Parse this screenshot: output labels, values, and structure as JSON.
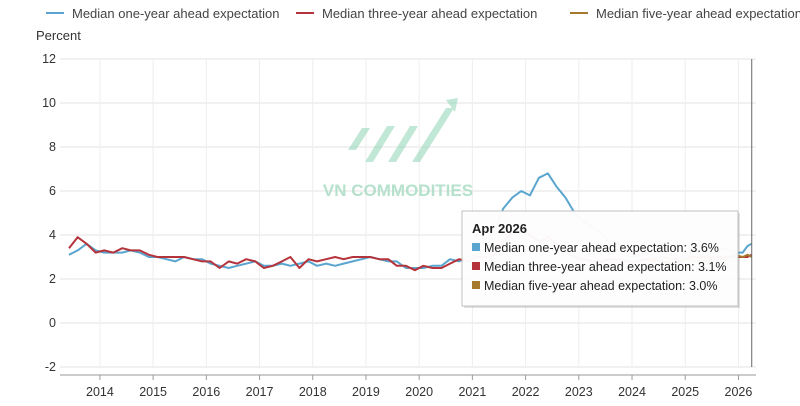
{
  "chart_data": {
    "type": "line",
    "ylabel": "Percent",
    "ylim": [
      -2,
      12
    ],
    "y_ticks": [
      -2,
      0,
      2,
      4,
      6,
      8,
      10,
      12
    ],
    "x_ticks": [
      2014,
      2015,
      2016,
      2017,
      2018,
      2019,
      2020,
      2021,
      2022,
      2023,
      2024,
      2025,
      2026
    ],
    "x_range": [
      2013.25,
      2026.33
    ],
    "grid": true,
    "legend_position": "top",
    "series": [
      {
        "name": "Median one-year ahead expectation",
        "color": "#5aa5cf",
        "points": [
          [
            2013.42,
            3.1
          ],
          [
            2013.58,
            3.3
          ],
          [
            2013.75,
            3.6
          ],
          [
            2013.92,
            3.3
          ],
          [
            2014.08,
            3.2
          ],
          [
            2014.25,
            3.2
          ],
          [
            2014.42,
            3.2
          ],
          [
            2014.58,
            3.3
          ],
          [
            2014.75,
            3.2
          ],
          [
            2014.92,
            3.0
          ],
          [
            2015.08,
            3.0
          ],
          [
            2015.25,
            2.9
          ],
          [
            2015.42,
            2.8
          ],
          [
            2015.58,
            3.0
          ],
          [
            2015.75,
            2.9
          ],
          [
            2015.92,
            2.9
          ],
          [
            2016.08,
            2.7
          ],
          [
            2016.25,
            2.6
          ],
          [
            2016.42,
            2.5
          ],
          [
            2016.58,
            2.6
          ],
          [
            2016.75,
            2.7
          ],
          [
            2016.92,
            2.8
          ],
          [
            2017.08,
            2.6
          ],
          [
            2017.25,
            2.6
          ],
          [
            2017.42,
            2.7
          ],
          [
            2017.58,
            2.6
          ],
          [
            2017.75,
            2.7
          ],
          [
            2017.92,
            2.8
          ],
          [
            2018.08,
            2.6
          ],
          [
            2018.25,
            2.7
          ],
          [
            2018.42,
            2.6
          ],
          [
            2018.58,
            2.7
          ],
          [
            2018.75,
            2.8
          ],
          [
            2018.92,
            2.9
          ],
          [
            2019.08,
            3.0
          ],
          [
            2019.25,
            2.9
          ],
          [
            2019.42,
            2.8
          ],
          [
            2019.58,
            2.8
          ],
          [
            2019.75,
            2.5
          ],
          [
            2019.92,
            2.5
          ],
          [
            2020.08,
            2.5
          ],
          [
            2020.25,
            2.6
          ],
          [
            2020.42,
            2.6
          ],
          [
            2020.58,
            2.9
          ],
          [
            2020.75,
            2.8
          ],
          [
            2020.92,
            3.0
          ],
          [
            2021.08,
            3.1
          ],
          [
            2021.25,
            3.4
          ],
          [
            2021.42,
            4.2
          ],
          [
            2021.58,
            5.2
          ],
          [
            2021.75,
            5.7
          ],
          [
            2021.92,
            6.0
          ],
          [
            2022.08,
            5.8
          ],
          [
            2022.25,
            6.6
          ],
          [
            2022.42,
            6.8
          ],
          [
            2022.58,
            6.2
          ],
          [
            2022.75,
            5.7
          ],
          [
            2022.92,
            5.0
          ],
          [
            2023.08,
            4.6
          ],
          [
            2023.25,
            4.4
          ],
          [
            2023.42,
            4.1
          ],
          [
            2023.58,
            3.6
          ],
          [
            2023.75,
            3.6
          ],
          [
            2023.92,
            3.0
          ],
          [
            2024.08,
            3.0
          ],
          [
            2024.25,
            3.2
          ],
          [
            2024.42,
            3.0
          ],
          [
            2024.58,
            3.0
          ],
          [
            2024.75,
            2.9
          ],
          [
            2024.92,
            3.0
          ],
          [
            2025.08,
            3.1
          ],
          [
            2025.25,
            3.6
          ],
          [
            2025.42,
            3.2
          ],
          [
            2025.58,
            3.2
          ],
          [
            2025.75,
            3.4
          ],
          [
            2025.92,
            3.2
          ],
          [
            2026.08,
            3.2
          ],
          [
            2026.17,
            3.5
          ],
          [
            2026.25,
            3.6
          ]
        ]
      },
      {
        "name": "Median three-year ahead expectation",
        "color": "#b5343c",
        "points": [
          [
            2013.42,
            3.4
          ],
          [
            2013.58,
            3.9
          ],
          [
            2013.75,
            3.6
          ],
          [
            2013.92,
            3.2
          ],
          [
            2014.08,
            3.3
          ],
          [
            2014.25,
            3.2
          ],
          [
            2014.42,
            3.4
          ],
          [
            2014.58,
            3.3
          ],
          [
            2014.75,
            3.3
          ],
          [
            2014.92,
            3.1
          ],
          [
            2015.08,
            3.0
          ],
          [
            2015.25,
            3.0
          ],
          [
            2015.42,
            3.0
          ],
          [
            2015.58,
            3.0
          ],
          [
            2015.75,
            2.9
          ],
          [
            2015.92,
            2.8
          ],
          [
            2016.08,
            2.8
          ],
          [
            2016.25,
            2.5
          ],
          [
            2016.42,
            2.8
          ],
          [
            2016.58,
            2.7
          ],
          [
            2016.75,
            2.9
          ],
          [
            2016.92,
            2.8
          ],
          [
            2017.08,
            2.5
          ],
          [
            2017.25,
            2.6
          ],
          [
            2017.42,
            2.8
          ],
          [
            2017.58,
            3.0
          ],
          [
            2017.75,
            2.5
          ],
          [
            2017.92,
            2.9
          ],
          [
            2018.08,
            2.8
          ],
          [
            2018.25,
            2.9
          ],
          [
            2018.42,
            3.0
          ],
          [
            2018.58,
            2.9
          ],
          [
            2018.75,
            3.0
          ],
          [
            2018.92,
            3.0
          ],
          [
            2019.08,
            3.0
          ],
          [
            2019.25,
            2.9
          ],
          [
            2019.42,
            2.9
          ],
          [
            2019.58,
            2.6
          ],
          [
            2019.75,
            2.6
          ],
          [
            2019.92,
            2.4
          ],
          [
            2020.08,
            2.6
          ],
          [
            2020.25,
            2.5
          ],
          [
            2020.42,
            2.5
          ],
          [
            2020.58,
            2.7
          ],
          [
            2020.75,
            2.9
          ],
          [
            2020.92,
            2.8
          ],
          [
            2021.08,
            3.0
          ],
          [
            2021.25,
            3.0
          ],
          [
            2021.42,
            3.1
          ],
          [
            2021.58,
            3.7
          ],
          [
            2021.75,
            4.1
          ],
          [
            2021.92,
            4.2
          ],
          [
            2022.08,
            4.0
          ],
          [
            2022.25,
            3.7
          ],
          [
            2022.42,
            3.9
          ],
          [
            2022.58,
            3.6
          ],
          [
            2022.75,
            3.2
          ],
          [
            2022.92,
            3.0
          ],
          [
            2023.08,
            2.9
          ],
          [
            2023.25,
            2.8
          ],
          [
            2023.42,
            2.8
          ],
          [
            2023.58,
            2.9
          ],
          [
            2023.75,
            2.9
          ],
          [
            2023.92,
            2.8
          ],
          [
            2024.08,
            2.8
          ],
          [
            2024.25,
            2.9
          ],
          [
            2024.42,
            2.9
          ],
          [
            2024.58,
            2.8
          ],
          [
            2024.75,
            2.7
          ],
          [
            2024.92,
            2.8
          ],
          [
            2025.08,
            3.0
          ],
          [
            2025.25,
            3.0
          ],
          [
            2025.42,
            3.0
          ],
          [
            2025.58,
            3.0
          ],
          [
            2025.75,
            3.0
          ],
          [
            2025.92,
            3.0
          ],
          [
            2026.08,
            3.0
          ],
          [
            2026.17,
            3.0
          ],
          [
            2026.25,
            3.1
          ]
        ]
      },
      {
        "name": "Median five-year ahead expectation",
        "color": "#a67a2e",
        "points": [
          [
            2024.25,
            2.9
          ],
          [
            2024.42,
            2.8
          ],
          [
            2024.58,
            3.0
          ],
          [
            2024.75,
            2.9
          ],
          [
            2024.92,
            2.9
          ],
          [
            2025.08,
            2.9
          ],
          [
            2025.25,
            2.8
          ],
          [
            2025.42,
            2.9
          ],
          [
            2025.58,
            2.9
          ],
          [
            2025.75,
            2.9
          ],
          [
            2025.92,
            3.1
          ],
          [
            2026.08,
            3.0
          ],
          [
            2026.17,
            3.1
          ],
          [
            2026.25,
            3.0
          ]
        ]
      }
    ],
    "crosshair_x": 2026.25,
    "tooltip": {
      "title": "Apr 2026",
      "items": [
        {
          "label": "Median one-year ahead expectation: 3.6%",
          "color": "#5aa5cf"
        },
        {
          "label": "Median three-year ahead expectation: 3.1%",
          "color": "#b5343c"
        },
        {
          "label": "Median five-year ahead expectation: 3.0%",
          "color": "#a67a2e"
        }
      ]
    }
  },
  "watermark": {
    "text": "VN COMMODITIES",
    "color": "#a9dcc5"
  }
}
